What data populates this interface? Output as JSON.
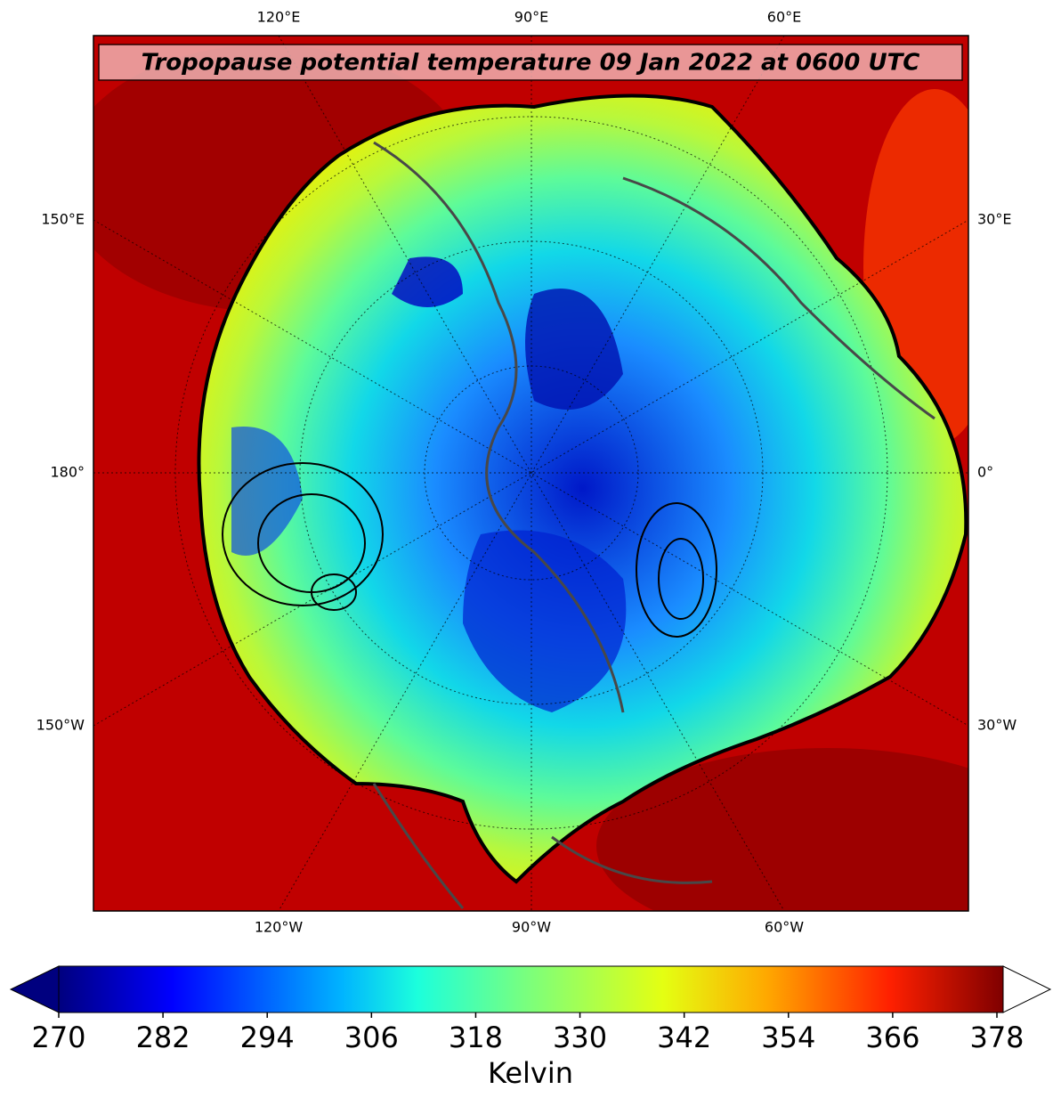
{
  "title": "Tropopause potential temperature 09 Jan 2022 at 0600 UTC",
  "top_labels": [
    "120°E",
    "90°E",
    "60°E"
  ],
  "bottom_labels": [
    "120°W",
    "90°W",
    "60°W"
  ],
  "left_labels": [
    "150°E",
    "180°",
    "150°W"
  ],
  "right_labels": [
    "30°E",
    "0°",
    "30°W"
  ],
  "colorbar": {
    "ticks": [
      270,
      282,
      294,
      306,
      318,
      330,
      342,
      354,
      366,
      378
    ],
    "label": "Kelvin"
  }
}
